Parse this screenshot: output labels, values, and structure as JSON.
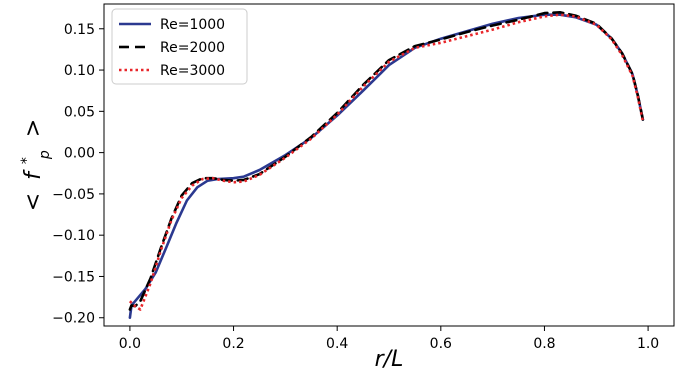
{
  "chart_data": {
    "type": "line",
    "xlabel": "r/L",
    "ylabel_main": "f",
    "ylabel_sup": "*",
    "ylabel_sub": "p",
    "ylabel_open": "<",
    "ylabel_close": ">",
    "xlim": [
      -0.05,
      1.05
    ],
    "ylim": [
      -0.21,
      0.18
    ],
    "x_ticks": [
      0.0,
      0.2,
      0.4,
      0.6,
      0.8,
      1.0
    ],
    "x_tick_labels": [
      "0.0",
      "0.2",
      "0.4",
      "0.6",
      "0.8",
      "1.0"
    ],
    "y_ticks": [
      -0.2,
      -0.15,
      -0.1,
      -0.05,
      0.0,
      0.05,
      0.1,
      0.15
    ],
    "y_tick_labels": [
      "−0.20",
      "−0.15",
      "−0.10",
      "−0.05",
      "0.00",
      "0.05",
      "0.10",
      "0.15"
    ],
    "grid": false,
    "legend_position": "top-left",
    "series": [
      {
        "name": "Re=1000",
        "color": "#2b3990",
        "dash": "solid",
        "x": [
          0.0,
          0.003,
          0.01,
          0.03,
          0.05,
          0.07,
          0.09,
          0.11,
          0.13,
          0.15,
          0.17,
          0.2,
          0.22,
          0.25,
          0.3,
          0.35,
          0.4,
          0.45,
          0.5,
          0.55,
          0.6,
          0.65,
          0.7,
          0.75,
          0.8,
          0.83,
          0.86,
          0.9,
          0.93,
          0.95,
          0.97,
          0.98,
          0.99
        ],
        "y": [
          -0.2,
          -0.185,
          -0.18,
          -0.165,
          -0.145,
          -0.115,
          -0.085,
          -0.058,
          -0.042,
          -0.034,
          -0.032,
          -0.031,
          -0.029,
          -0.021,
          -0.003,
          0.018,
          0.045,
          0.075,
          0.106,
          0.127,
          0.138,
          0.147,
          0.156,
          0.163,
          0.167,
          0.167,
          0.164,
          0.155,
          0.138,
          0.12,
          0.095,
          0.07,
          0.04
        ]
      },
      {
        "name": "Re=2000",
        "color": "#000000",
        "dash": "dashed",
        "x": [
          0.0,
          0.003,
          0.01,
          0.02,
          0.04,
          0.06,
          0.08,
          0.1,
          0.12,
          0.14,
          0.16,
          0.18,
          0.2,
          0.22,
          0.25,
          0.3,
          0.35,
          0.4,
          0.45,
          0.5,
          0.55,
          0.6,
          0.65,
          0.7,
          0.75,
          0.8,
          0.83,
          0.86,
          0.9,
          0.93,
          0.95,
          0.97,
          0.98,
          0.99
        ],
        "y": [
          -0.19,
          -0.185,
          -0.186,
          -0.18,
          -0.152,
          -0.115,
          -0.08,
          -0.052,
          -0.037,
          -0.031,
          -0.031,
          -0.033,
          -0.034,
          -0.033,
          -0.026,
          -0.005,
          0.019,
          0.048,
          0.082,
          0.112,
          0.129,
          0.137,
          0.146,
          0.154,
          0.161,
          0.169,
          0.17,
          0.166,
          0.156,
          0.138,
          0.12,
          0.095,
          0.07,
          0.04
        ]
      },
      {
        "name": "Re=3000",
        "color": "#e8262a",
        "dash": "dotted",
        "x": [
          0.0,
          0.003,
          0.01,
          0.02,
          0.04,
          0.06,
          0.08,
          0.1,
          0.12,
          0.14,
          0.16,
          0.18,
          0.2,
          0.22,
          0.25,
          0.3,
          0.35,
          0.4,
          0.45,
          0.5,
          0.55,
          0.6,
          0.65,
          0.7,
          0.75,
          0.8,
          0.83,
          0.86,
          0.9,
          0.93,
          0.95,
          0.97,
          0.98,
          0.99
        ],
        "y": [
          -0.18,
          -0.182,
          -0.186,
          -0.19,
          -0.158,
          -0.118,
          -0.082,
          -0.055,
          -0.04,
          -0.032,
          -0.031,
          -0.034,
          -0.036,
          -0.035,
          -0.027,
          -0.006,
          0.017,
          0.046,
          0.08,
          0.11,
          0.127,
          0.133,
          0.141,
          0.149,
          0.158,
          0.165,
          0.167,
          0.165,
          0.155,
          0.137,
          0.118,
          0.093,
          0.068,
          0.038
        ]
      }
    ]
  }
}
